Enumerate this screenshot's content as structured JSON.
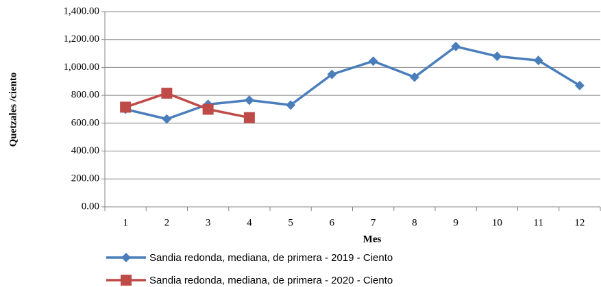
{
  "chart_data": {
    "type": "line",
    "x_label": "Mes",
    "y_label": "Quetzales /ciento",
    "categories": [
      "1",
      "2",
      "3",
      "4",
      "5",
      "6",
      "7",
      "8",
      "9",
      "10",
      "11",
      "12"
    ],
    "series": [
      {
        "name": "Sandia redonda, mediana, de primera - 2019 - Ciento",
        "color": "#4a7ebb",
        "marker": "diamond",
        "values": [
          700,
          630,
          735,
          765,
          730,
          950,
          1045,
          930,
          1150,
          1080,
          1050,
          870
        ]
      },
      {
        "name": "Sandia redonda, mediana, de primera - 2020 - Ciento",
        "color": "#be4b48",
        "marker": "square",
        "values": [
          715,
          815,
          700,
          640,
          null,
          null,
          null,
          null,
          null,
          null,
          null,
          null
        ]
      }
    ],
    "ylim": [
      0,
      1400
    ],
    "yticks": [
      {
        "value": 0,
        "label": "0.00"
      },
      {
        "value": 200,
        "label": "200.00"
      },
      {
        "value": 400,
        "label": "400.00"
      },
      {
        "value": 600,
        "label": "600.00"
      },
      {
        "value": 800,
        "label": "800.00"
      },
      {
        "value": 1000,
        "label": "1,000.00"
      },
      {
        "value": 1200,
        "label": "1,200.00"
      },
      {
        "value": 1400,
        "label": "1,400.00"
      }
    ],
    "grid": true,
    "legend": "bottom"
  }
}
